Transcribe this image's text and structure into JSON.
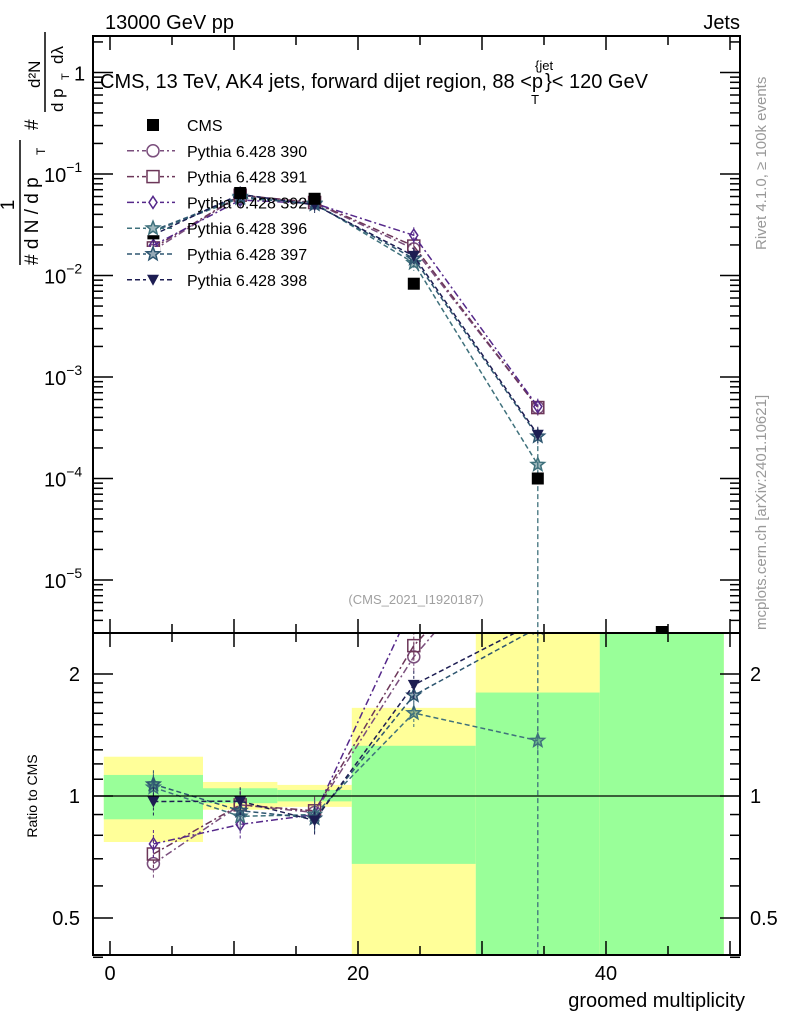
{
  "header": {
    "left": "13000 GeV pp",
    "right": "Jets"
  },
  "side_labels": {
    "rivet": "Rivet 4.1.0, ≥ 100k events",
    "mcplots": "mcplots.cern.ch [arXiv:2401.10621]"
  },
  "chart_data": {
    "type": "line",
    "title": {
      "main": "CMS, 13 TeV, AK4 jets, forward dijet region, 88 <p",
      "sup": "{jet",
      "sub": "T",
      "end": "}< 120 GeV"
    },
    "watermark": "(CMS_2021_I1920187)",
    "xlabel": "groomed multiplicity",
    "ylabel_parts": [
      "1",
      "# d N / d p",
      "T",
      "#",
      "d²N",
      "d p",
      "T",
      "dλ"
    ],
    "ratio_ylabel": "Ratio to CMS",
    "xlim": [
      -1.4,
      50.8
    ],
    "ylim": [
      3e-06,
      2.3
    ],
    "yscale": "log",
    "ratio_ylim": [
      0.4,
      2.5
    ],
    "ratio_yscale": "log",
    "x_tick_labels": [
      "0",
      "20",
      "40"
    ],
    "y_tick_labels": [
      {
        "base": "1",
        "exp": ""
      },
      {
        "base": "10",
        "exp": "−1"
      },
      {
        "base": "10",
        "exp": "−2"
      },
      {
        "base": "10",
        "exp": "−3"
      },
      {
        "base": "10",
        "exp": "−4"
      },
      {
        "base": "10",
        "exp": "−5"
      }
    ],
    "ratio_tick_labels": [
      "0.5",
      "1",
      "2"
    ],
    "legend_position": "top-left",
    "bins": [
      [
        -0.5,
        7.5
      ],
      [
        7.5,
        13.5
      ],
      [
        13.5,
        19.5
      ],
      [
        19.5,
        29.5
      ],
      [
        29.5,
        39.5
      ],
      [
        39.5,
        49.5
      ]
    ],
    "x": [
      3.5,
      10.5,
      16.5,
      24.5,
      34.5,
      44.5
    ],
    "reference": {
      "name": "CMS",
      "values": [
        0.026,
        0.065,
        0.057,
        0.0083,
        0.0001,
        3e-06
      ],
      "band_inner": [
        [
          0.876,
          1.127
        ],
        [
          0.96,
          1.045
        ],
        [
          0.97,
          1.035
        ],
        [
          0.68,
          1.33
        ],
        [
          0.3,
          1.8
        ],
        [
          0.3,
          3.0
        ]
      ],
      "band_outer": [
        [
          0.77,
          1.25
        ],
        [
          0.925,
          1.083
        ],
        [
          0.94,
          1.065
        ],
        [
          0.3,
          1.65
        ],
        [
          0.3,
          3.0
        ],
        [
          0.3,
          3.0
        ]
      ]
    },
    "series": [
      {
        "name": "Pythia 6.428 390",
        "marker": "circle",
        "dash": "dashdot",
        "color": "#7b4f7d",
        "values": [
          0.0177,
          0.0618,
          0.0519,
          0.0183,
          0.0005,
          null
        ]
      },
      {
        "name": "Pythia 6.428 391",
        "marker": "square-open",
        "dash": "dashdot",
        "color": "#6c3658",
        "values": [
          0.0187,
          0.0618,
          0.0524,
          0.0195,
          0.0005,
          null
        ]
      },
      {
        "name": "Pythia 6.428 392",
        "marker": "diamond",
        "dash": "dashdot",
        "color": "#55288a",
        "values": [
          0.0198,
          0.0553,
          0.0513,
          0.0249,
          0.00051,
          null
        ]
      },
      {
        "name": "Pythia 6.428 396",
        "marker": "star",
        "dash": "dashed",
        "color": "#3f717c",
        "values": [
          0.0273,
          0.0579,
          0.0513,
          0.0133,
          0.000137,
          null
        ]
      },
      {
        "name": "Pythia 6.428 397",
        "marker": "star",
        "dash": "dashed",
        "color": "#2e5670",
        "values": [
          0.0278,
          0.0598,
          0.0502,
          0.0147,
          0.00026,
          null
        ]
      },
      {
        "name": "Pythia 6.428 398",
        "marker": "triangle-down",
        "dash": "dashed",
        "color": "#1d1d52",
        "values": [
          0.0252,
          0.0631,
          0.0496,
          0.0156,
          0.00027,
          null
        ]
      }
    ],
    "colors": {
      "band_inner": "#99ff99",
      "band_outer": "#ffff99",
      "reference": "#000000"
    }
  }
}
